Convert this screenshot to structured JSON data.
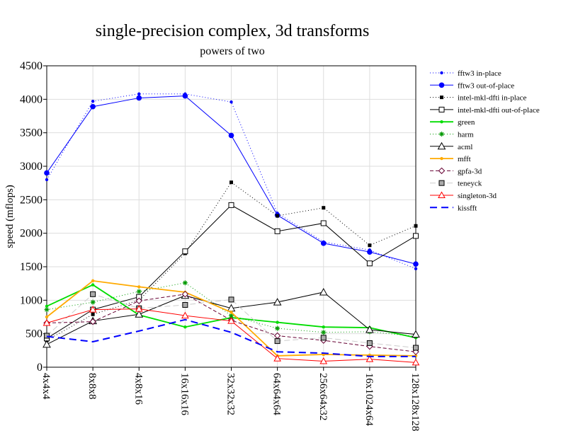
{
  "chart_data": {
    "type": "line",
    "title": "single-precision complex, 3d transforms",
    "subtitle": "powers of two",
    "xlabel": "",
    "ylabel": "speed (mflops)",
    "ylim": [
      0,
      4500
    ],
    "yticks": [
      "0",
      "500",
      "1000",
      "1500",
      "2000",
      "2500",
      "3000",
      "3500",
      "4000",
      "4500"
    ],
    "categories": [
      "4x4x4",
      "8x8x8",
      "4x8x16",
      "16x16x16",
      "32x32x32",
      "64x64x64",
      "256x64x32",
      "16x1024x64",
      "128x128x128"
    ],
    "grid": true,
    "legend_position": "right",
    "series": [
      {
        "name": "fftw3 in-place",
        "color": "#0000ff",
        "dash": "1,3",
        "marker": "dot",
        "values": [
          2800,
          3970,
          4080,
          4080,
          3960,
          2300,
          1870,
          1750,
          1470
        ]
      },
      {
        "name": "fftw3 out-of-place",
        "color": "#0000ff",
        "dash": "",
        "marker": "circle",
        "values": [
          2900,
          3890,
          4020,
          4050,
          3460,
          2270,
          1850,
          1720,
          1540
        ]
      },
      {
        "name": "intel-mkl-dfti in-place",
        "color": "#000000",
        "dash": "1,3",
        "marker": "smallsquare",
        "values": [
          400,
          790,
          1000,
          1700,
          2760,
          2260,
          2380,
          1820,
          2110
        ]
      },
      {
        "name": "intel-mkl-dfti out-of-place",
        "color": "#000000",
        "dash": "",
        "marker": "square",
        "values": [
          430,
          860,
          1050,
          1730,
          2420,
          2030,
          2150,
          1550,
          1960
        ]
      },
      {
        "name": "green",
        "color": "#00dd00",
        "dash": "",
        "marker": "dot",
        "values": [
          910,
          1230,
          780,
          600,
          740,
          670,
          600,
          590,
          440
        ]
      },
      {
        "name": "harm",
        "color": "#009900",
        "dash": "1,3",
        "marker": "asterisk",
        "values": [
          860,
          970,
          1130,
          1260,
          770,
          580,
          520,
          530,
          460
        ]
      },
      {
        "name": "acml",
        "color": "#000000",
        "dash": "",
        "marker": "triangle",
        "values": [
          340,
          690,
          790,
          1070,
          880,
          970,
          1120,
          560,
          490
        ]
      },
      {
        "name": "mfft",
        "color": "#ffaa00",
        "dash": "",
        "marker": "dot",
        "values": [
          750,
          1290,
          1200,
          1120,
          820,
          170,
          190,
          180,
          170
        ]
      },
      {
        "name": "gpfa-3d",
        "color": "#660033",
        "dash": "5,3",
        "marker": "diamond",
        "values": [
          660,
          680,
          990,
          1090,
          700,
          470,
          400,
          310,
          230
        ]
      },
      {
        "name": "teneyck",
        "color": "#cccccc",
        "dash": "8,4",
        "marker": "graysquare",
        "values": [
          470,
          1090,
          880,
          930,
          1010,
          390,
          440,
          360,
          290
        ]
      },
      {
        "name": "singleton-3d",
        "color": "#ff0000",
        "dash": "",
        "marker": "redtriangle",
        "values": [
          660,
          860,
          870,
          770,
          690,
          130,
          90,
          120,
          70
        ]
      },
      {
        "name": "kissfft",
        "color": "#0000ff",
        "dash": "10,6",
        "marker": "none",
        "values": [
          460,
          380,
          540,
          710,
          520,
          230,
          210,
          160,
          160
        ]
      }
    ]
  }
}
